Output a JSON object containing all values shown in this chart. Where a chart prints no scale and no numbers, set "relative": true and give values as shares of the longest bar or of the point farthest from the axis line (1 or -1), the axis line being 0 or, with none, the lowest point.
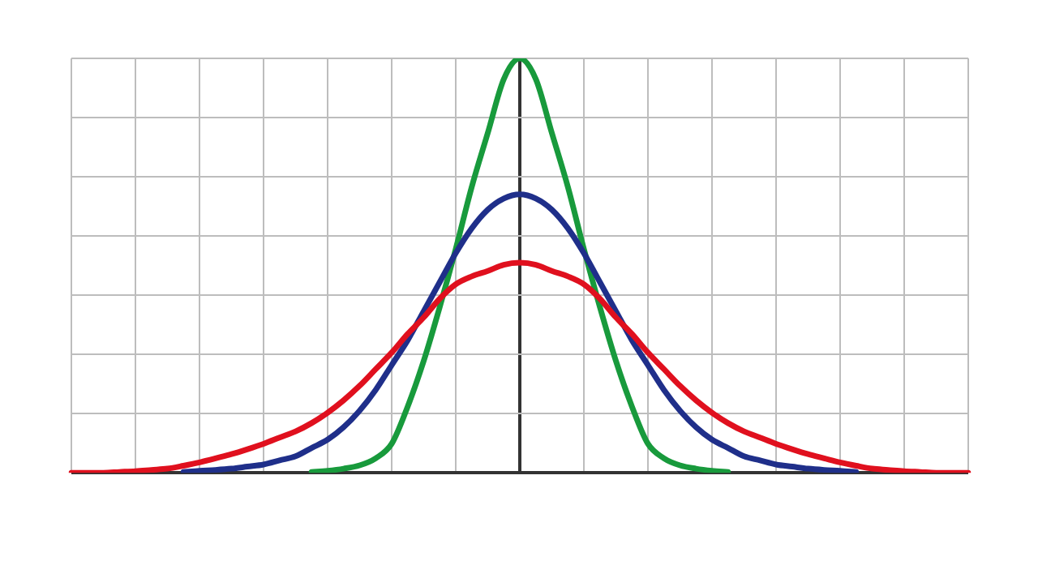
{
  "chart_data": {
    "type": "line",
    "relative": true,
    "grid": true,
    "marker": "none",
    "line_style": "solid",
    "categories": [
      null,
      null,
      null,
      null,
      null,
      null,
      null,
      null,
      null,
      null,
      null,
      null,
      null,
      null,
      null,
      null,
      null,
      null,
      null,
      null,
      null,
      null,
      null,
      null,
      null,
      null,
      null,
      null,
      null,
      null,
      null,
      null,
      null,
      null,
      null,
      null,
      null,
      null,
      null,
      null,
      null,
      null,
      null,
      null,
      null,
      null,
      null,
      null,
      null,
      null,
      null,
      null,
      null,
      null,
      null,
      null,
      null
    ],
    "series": [
      {
        "color": "#e0101e",
        "values": [
          0,
          0,
          0,
          0.002,
          0.004,
          0.007,
          0.01,
          0.017,
          0.025,
          0.035,
          0.045,
          0.057,
          0.07,
          0.085,
          0.1,
          0.12,
          0.145,
          0.175,
          0.21,
          0.25,
          0.29,
          0.335,
          0.375,
          0.42,
          0.455,
          0.474,
          0.487,
          0.502,
          0.507,
          0.502,
          0.487,
          0.474,
          0.455,
          0.42,
          0.375,
          0.335,
          0.29,
          0.25,
          0.21,
          0.175,
          0.145,
          0.12,
          0.1,
          0.085,
          0.07,
          0.057,
          0.045,
          0.035,
          0.025,
          0.017,
          0.01,
          0.007,
          0.004,
          0.002,
          0,
          0,
          0
        ]
      },
      {
        "color": "#1f2f8a",
        "values": [
          null,
          null,
          null,
          null,
          null,
          null,
          null,
          0.002,
          0.005,
          0.007,
          0.01,
          0.015,
          0.02,
          0.03,
          0.04,
          0.06,
          0.08,
          0.11,
          0.15,
          0.2,
          0.26,
          0.32,
          0.39,
          0.46,
          0.53,
          0.59,
          0.635,
          0.662,
          0.672,
          0.662,
          0.635,
          0.59,
          0.53,
          0.46,
          0.39,
          0.32,
          0.26,
          0.2,
          0.15,
          0.11,
          0.08,
          0.06,
          0.04,
          0.03,
          0.02,
          0.015,
          0.01,
          0.007,
          0.005,
          0.002,
          null,
          null,
          null,
          null,
          null,
          null,
          null
        ]
      },
      {
        "color": "#189a3c",
        "values": [
          null,
          null,
          null,
          null,
          null,
          null,
          null,
          null,
          null,
          null,
          null,
          null,
          null,
          null,
          null,
          0.002,
          0.005,
          0.01,
          0.018,
          0.035,
          0.07,
          0.16,
          0.27,
          0.4,
          0.54,
          0.69,
          0.82,
          0.95,
          1,
          0.95,
          0.82,
          0.69,
          0.54,
          0.4,
          0.27,
          0.16,
          0.07,
          0.035,
          0.018,
          0.01,
          0.005,
          0.002,
          null,
          null,
          null,
          null,
          null,
          null,
          null,
          null,
          null,
          null,
          null,
          null,
          null,
          null,
          null
        ]
      }
    ]
  }
}
